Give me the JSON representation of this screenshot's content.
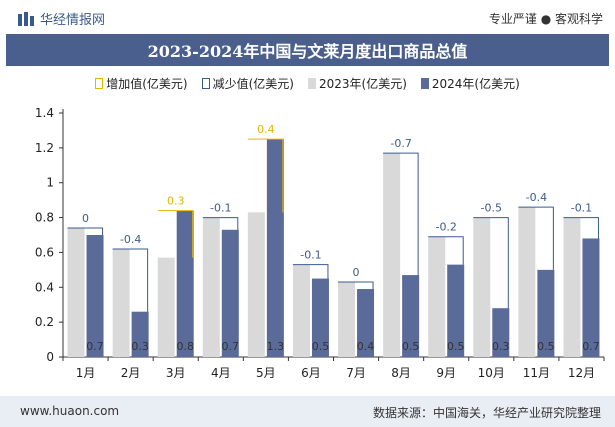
{
  "header": {
    "brand": "华经情报网",
    "slogan": "专业严谨 ● 客观科学"
  },
  "chart_data": {
    "type": "bar",
    "title": "2023-2024年中国与文莱月度出口商品总值",
    "categories": [
      "1月",
      "2月",
      "3月",
      "4月",
      "5月",
      "6月",
      "7月",
      "8月",
      "9月",
      "10月",
      "11月",
      "12月"
    ],
    "series": [
      {
        "name": "2023年(亿美元)",
        "values": [
          0.74,
          0.62,
          0.57,
          0.8,
          0.83,
          0.53,
          0.43,
          1.17,
          0.69,
          0.8,
          0.86,
          0.8
        ]
      },
      {
        "name": "2024年(亿美元)",
        "values": [
          0.7,
          0.26,
          0.84,
          0.73,
          1.25,
          0.45,
          0.39,
          0.47,
          0.53,
          0.28,
          0.5,
          0.68
        ]
      }
    ],
    "change": {
      "increase_name": "增加值(亿美元)",
      "decrease_name": "减少值(亿美元)",
      "labels": [
        "0",
        "-0.4",
        "0.3",
        "-0.1",
        "0.4",
        "-0.1",
        "0",
        "-0.7",
        "-0.2",
        "-0.5",
        "-0.4",
        "-0.1"
      ]
    },
    "bar_labels_2024": [
      "0.7",
      "0.3",
      "0.8",
      "0.7",
      "1.3",
      "0.5",
      "0.4",
      "0.5",
      "0.5",
      "0.3",
      "0.5",
      "0.7"
    ],
    "y_ticks": [
      "0",
      "0.2",
      "0.4",
      "0.6",
      "0.8",
      "1",
      "1.2",
      "1.4"
    ],
    "ylim": [
      0,
      1.4
    ],
    "colors": {
      "y2023": "#d9d9d9",
      "y2024": "#5a6b9a",
      "increase": "#e8b400",
      "decrease": "#3b5b8f",
      "inc_label": "#e8b400",
      "dec_label": "#3b5b8f"
    }
  },
  "footer": {
    "website": "www.huaon.com",
    "source": "数据来源：中国海关，华经产业研究院整理"
  }
}
